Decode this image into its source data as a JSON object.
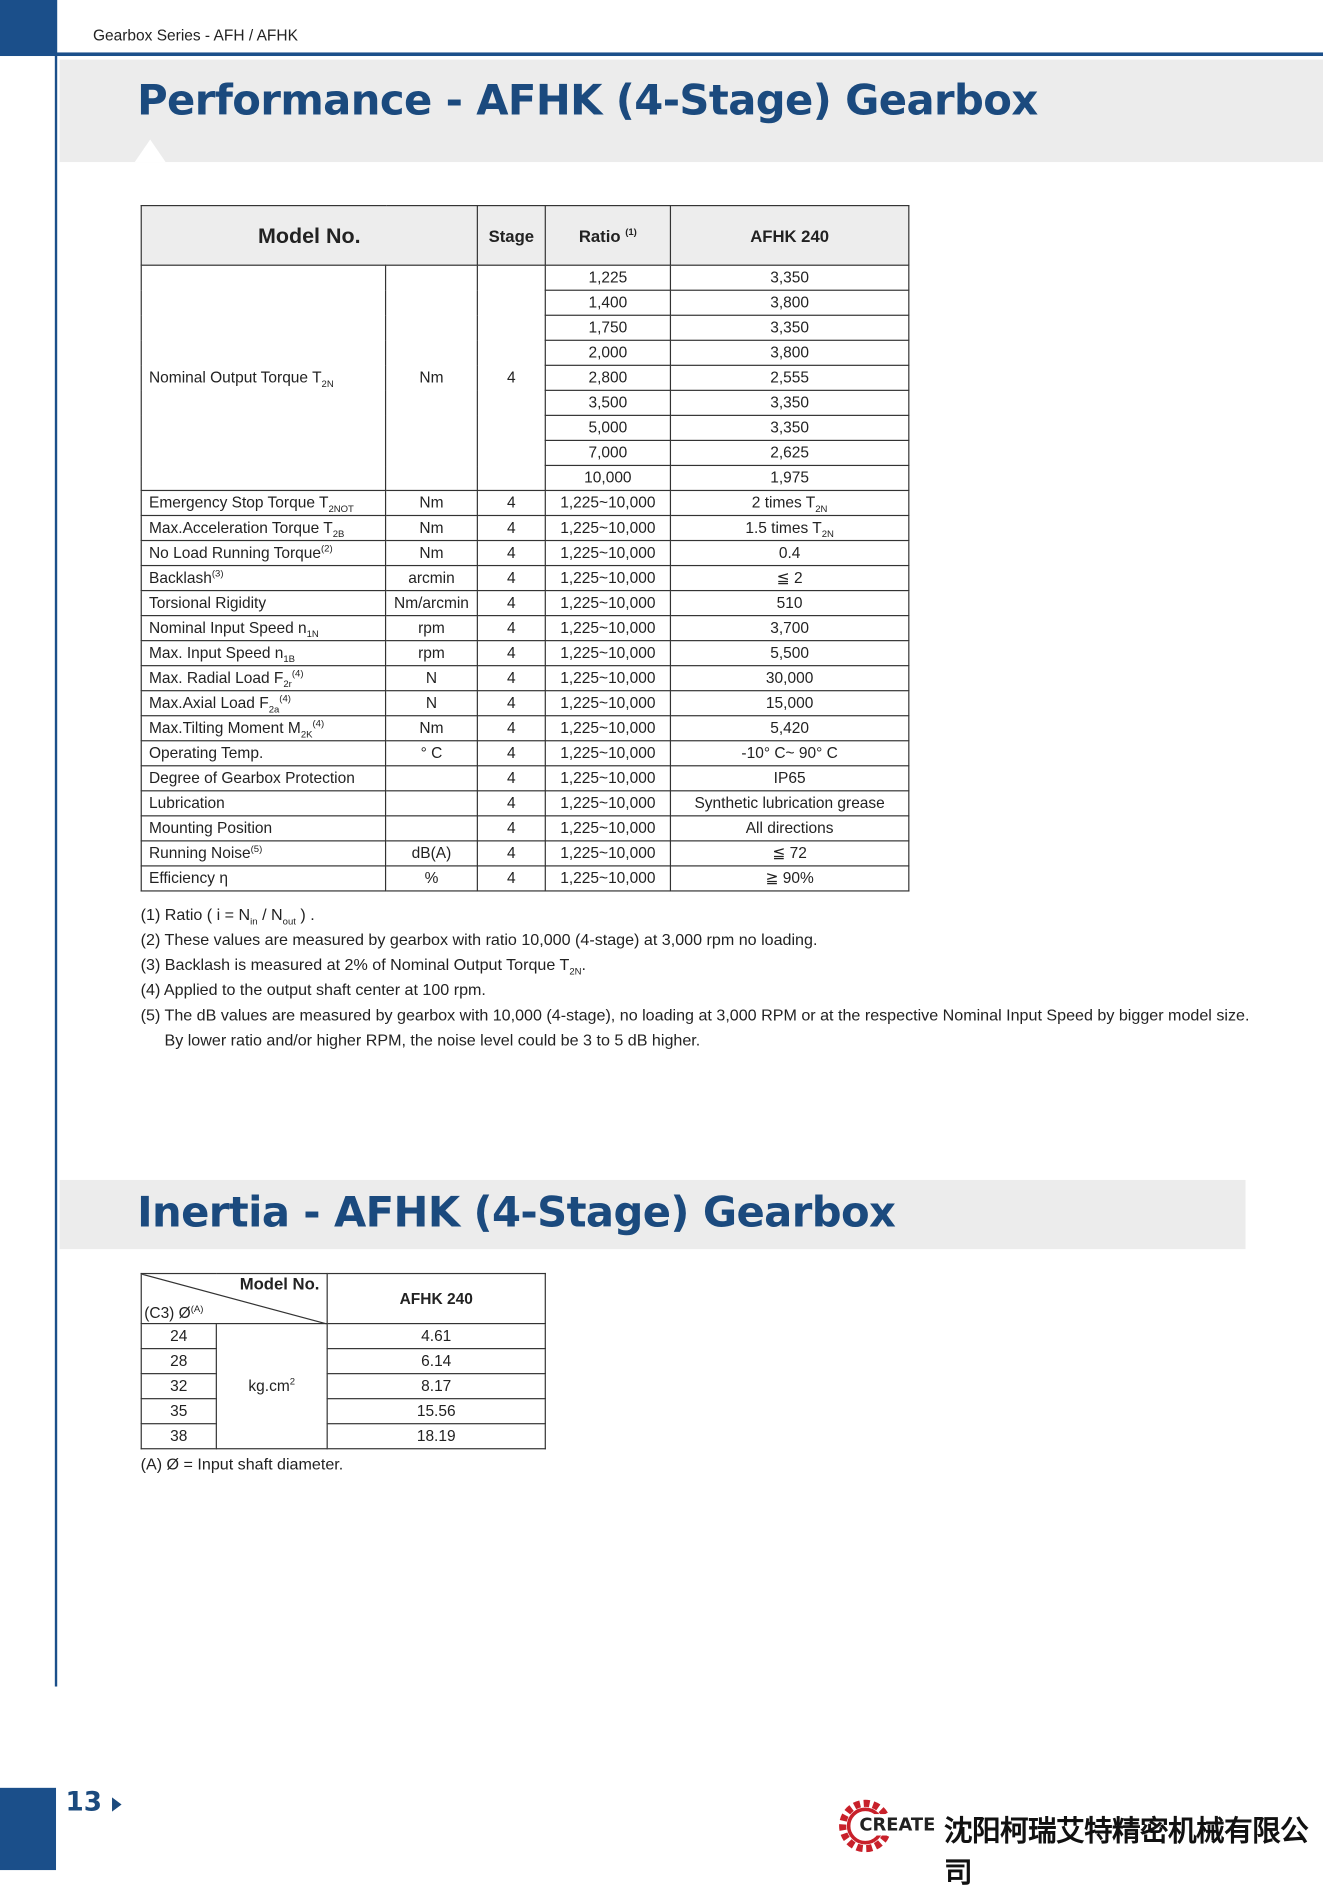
{
  "header": {
    "series": "Gearbox Series - AFH / AFHK"
  },
  "performance": {
    "title": "Performance - AFHK (4-Stage) Gearbox",
    "headers": {
      "model": "Model No.",
      "stage": "Stage",
      "ratio": "Ratio",
      "ratio_note": "(1)",
      "product": "AFHK 240"
    },
    "torque": {
      "label": [
        "Nominal Output Torque T",
        {
          "sub": "2N"
        }
      ],
      "unit": "Nm",
      "stage": "4",
      "rows": [
        [
          "1,225",
          "3,350"
        ],
        [
          "1,400",
          "3,800"
        ],
        [
          "1,750",
          "3,350"
        ],
        [
          "2,000",
          "3,800"
        ],
        [
          "2,800",
          "2,555"
        ],
        [
          "3,500",
          "3,350"
        ],
        [
          "5,000",
          "3,350"
        ],
        [
          "7,000",
          "2,625"
        ],
        [
          "10,000",
          "1,975"
        ]
      ]
    },
    "rows": [
      {
        "label": [
          "Emergency Stop Torque T",
          {
            "sub": "2NOT"
          }
        ],
        "unit": "Nm",
        "stage": "4",
        "ratio": "1,225~10,000",
        "value": [
          "2 times T",
          {
            "sub": "2N"
          }
        ]
      },
      {
        "label": [
          "Max.Acceleration Torque T",
          {
            "sub": "2B"
          }
        ],
        "unit": "Nm",
        "stage": "4",
        "ratio": "1,225~10,000",
        "value": [
          "1.5 times T",
          {
            "sub": "2N"
          }
        ]
      },
      {
        "label": [
          "No Load Running Torque",
          {
            "sup": "(2)"
          }
        ],
        "unit": "Nm",
        "stage": "4",
        "ratio": "1,225~10,000",
        "value": [
          "0.4"
        ]
      },
      {
        "label": [
          "Backlash",
          {
            "sup": "(3)"
          }
        ],
        "unit": "arcmin",
        "stage": "4",
        "ratio": "1,225~10,000",
        "value": [
          "≦ 2"
        ]
      },
      {
        "label": [
          "Torsional Rigidity"
        ],
        "unit": "Nm/arcmin",
        "stage": "4",
        "ratio": "1,225~10,000",
        "value": [
          "510"
        ]
      },
      {
        "label": [
          "Nominal Input Speed n",
          {
            "sub": "1N"
          }
        ],
        "unit": "rpm",
        "stage": "4",
        "ratio": "1,225~10,000",
        "value": [
          "3,700"
        ]
      },
      {
        "label": [
          "Max. Input Speed n",
          {
            "sub": "1B"
          }
        ],
        "unit": "rpm",
        "stage": "4",
        "ratio": "1,225~10,000",
        "value": [
          "5,500"
        ]
      },
      {
        "label": [
          "Max. Radial Load F",
          {
            "sub": "2r"
          },
          {
            "sup": "(4)"
          }
        ],
        "unit": "N",
        "stage": "4",
        "ratio": "1,225~10,000",
        "value": [
          "30,000"
        ]
      },
      {
        "label": [
          "Max.Axial Load F",
          {
            "sub": "2a"
          },
          {
            "sup": "(4)"
          }
        ],
        "unit": "N",
        "stage": "4",
        "ratio": "1,225~10,000",
        "value": [
          "15,000"
        ]
      },
      {
        "label": [
          "Max.Tilting Moment M",
          {
            "sub": "2K"
          },
          {
            "sup": "(4)"
          }
        ],
        "unit": "Nm",
        "stage": "4",
        "ratio": "1,225~10,000",
        "value": [
          "5,420"
        ]
      },
      {
        "label": [
          "Operating Temp."
        ],
        "unit": "° C",
        "stage": "4",
        "ratio": "1,225~10,000",
        "value": [
          "-10° C~ 90° C"
        ]
      },
      {
        "label": [
          "Degree of Gearbox Protection"
        ],
        "stage": "4",
        "ratio": "1,225~10,000",
        "value": [
          "IP65"
        ]
      },
      {
        "label": [
          "Lubrication"
        ],
        "stage": "4",
        "ratio": "1,225~10,000",
        "value": [
          "Synthetic lubrication grease"
        ]
      },
      {
        "label": [
          "Mounting Position"
        ],
        "stage": "4",
        "ratio": "1,225~10,000",
        "value": [
          "All directions"
        ]
      },
      {
        "label": [
          "Running Noise",
          {
            "sup": "(5)"
          }
        ],
        "unit": "dB(A)",
        "stage": "4",
        "ratio": "1,225~10,000",
        "value": [
          "≦ 72"
        ]
      },
      {
        "label": [
          "Efficiency η"
        ],
        "unit": "%",
        "stage": "4",
        "ratio": "1,225~10,000",
        "value": [
          "≧ 90%"
        ]
      }
    ],
    "notes": [
      [
        "(1) Ratio ( i = N",
        {
          "sub": "in"
        },
        " / N",
        {
          "sub": "out"
        },
        " ) ."
      ],
      [
        "(2) These values are measured by gearbox with ratio 10,000 (4-stage) at 3,000 rpm no loading."
      ],
      [
        "(3) Backlash is measured at 2% of Nominal Output Torque T",
        {
          "sub": "2N"
        },
        "."
      ],
      [
        "(4) Applied to the output shaft center at 100 rpm."
      ],
      [
        "(5) The dB values are measured by gearbox with 10,000 (4-stage), no loading at 3,000 RPM or at the respective Nominal Input Speed by bigger model size."
      ],
      [
        "By lower ratio and/or higher RPM, the noise level could be 3 to 5 dB higher."
      ]
    ]
  },
  "inertia": {
    "title": "Inertia - AFHK (4-Stage) Gearbox",
    "headers": {
      "model": "Model No.",
      "diameter": [
        "(C3) Ø",
        {
          "sup": "(A)"
        }
      ],
      "product": "AFHK 240"
    },
    "unit": [
      "kg.cm",
      {
        "sup": "2"
      }
    ],
    "rows": [
      [
        "24",
        "4.61"
      ],
      [
        "28",
        "6.14"
      ],
      [
        "32",
        "8.17"
      ],
      [
        "35",
        "15.56"
      ],
      [
        "38",
        "18.19"
      ]
    ],
    "note": "(A)  Ø = Input shaft diameter."
  },
  "footer": {
    "page": "13",
    "logo": "CREATE",
    "company": "沈阳柯瑞艾特精密机械有限公司"
  }
}
